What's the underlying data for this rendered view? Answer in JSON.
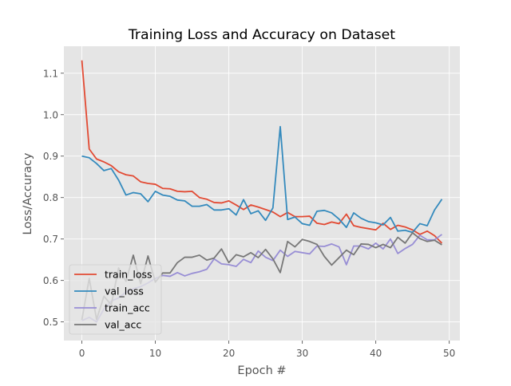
{
  "chart_data": {
    "type": "line",
    "title": "Training Loss and Accuracy on Dataset",
    "xlabel": "Epoch #",
    "ylabel": "Loss/Accuracy",
    "xlim": [
      -2.45,
      51.45
    ],
    "ylim": [
      0.455,
      1.165
    ],
    "xticks": [
      0,
      10,
      20,
      30,
      40,
      50
    ],
    "yticks": [
      0.5,
      0.6,
      0.7,
      0.8,
      0.9,
      1.0,
      1.1
    ],
    "grid": true,
    "legend_position": "lower-left",
    "x": [
      0,
      1,
      2,
      3,
      4,
      5,
      6,
      7,
      8,
      9,
      10,
      11,
      12,
      13,
      14,
      15,
      16,
      17,
      18,
      19,
      20,
      21,
      22,
      23,
      24,
      25,
      26,
      27,
      28,
      29,
      30,
      31,
      32,
      33,
      34,
      35,
      36,
      37,
      38,
      39,
      40,
      41,
      42,
      43,
      44,
      45,
      46,
      47,
      48,
      49
    ],
    "series": [
      {
        "name": "train_loss",
        "color": "#E24A33",
        "values": [
          1.131,
          0.917,
          0.893,
          0.886,
          0.877,
          0.862,
          0.855,
          0.852,
          0.838,
          0.834,
          0.832,
          0.822,
          0.821,
          0.815,
          0.814,
          0.815,
          0.8,
          0.796,
          0.788,
          0.787,
          0.792,
          0.782,
          0.771,
          0.782,
          0.777,
          0.771,
          0.765,
          0.754,
          0.764,
          0.754,
          0.754,
          0.755,
          0.738,
          0.735,
          0.741,
          0.737,
          0.76,
          0.732,
          0.728,
          0.725,
          0.722,
          0.738,
          0.723,
          0.733,
          0.729,
          0.722,
          0.711,
          0.719,
          0.708,
          0.69
        ]
      },
      {
        "name": "val_loss",
        "color": "#348ABD",
        "values": [
          0.9,
          0.896,
          0.882,
          0.865,
          0.87,
          0.842,
          0.806,
          0.812,
          0.809,
          0.79,
          0.815,
          0.806,
          0.803,
          0.794,
          0.792,
          0.779,
          0.779,
          0.783,
          0.77,
          0.77,
          0.773,
          0.758,
          0.795,
          0.761,
          0.768,
          0.745,
          0.775,
          0.971,
          0.747,
          0.753,
          0.737,
          0.733,
          0.767,
          0.769,
          0.763,
          0.748,
          0.728,
          0.763,
          0.75,
          0.742,
          0.739,
          0.734,
          0.752,
          0.719,
          0.721,
          0.716,
          0.737,
          0.732,
          0.77,
          0.796
        ]
      },
      {
        "name": "train_acc",
        "color": "#988ED5",
        "values": [
          0.503,
          0.511,
          0.5,
          0.531,
          0.55,
          0.558,
          0.572,
          0.58,
          0.585,
          0.594,
          0.605,
          0.612,
          0.61,
          0.619,
          0.611,
          0.617,
          0.621,
          0.627,
          0.652,
          0.64,
          0.638,
          0.634,
          0.651,
          0.643,
          0.671,
          0.656,
          0.648,
          0.673,
          0.658,
          0.67,
          0.667,
          0.664,
          0.683,
          0.682,
          0.688,
          0.681,
          0.638,
          0.683,
          0.683,
          0.676,
          0.69,
          0.676,
          0.7,
          0.665,
          0.677,
          0.687,
          0.709,
          0.698,
          0.698,
          0.711
        ]
      },
      {
        "name": "val_acc",
        "color": "#777777",
        "values": [
          0.505,
          0.605,
          0.506,
          0.562,
          0.541,
          0.63,
          0.598,
          0.661,
          0.592,
          0.659,
          0.596,
          0.618,
          0.618,
          0.643,
          0.656,
          0.656,
          0.661,
          0.649,
          0.654,
          0.676,
          0.643,
          0.662,
          0.657,
          0.667,
          0.655,
          0.675,
          0.652,
          0.619,
          0.694,
          0.681,
          0.699,
          0.694,
          0.687,
          0.658,
          0.637,
          0.655,
          0.673,
          0.662,
          0.688,
          0.687,
          0.679,
          0.687,
          0.679,
          0.704,
          0.69,
          0.715,
          0.701,
          0.694,
          0.697,
          0.686
        ]
      }
    ]
  }
}
